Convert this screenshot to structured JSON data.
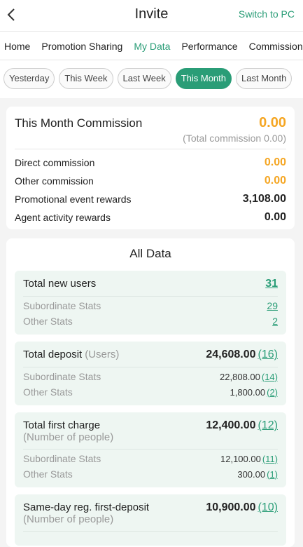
{
  "header": {
    "title": "Invite",
    "action": "Switch to PC"
  },
  "tabs": [
    {
      "label": "Home",
      "active": false
    },
    {
      "label": "Promotion Sharing",
      "active": false
    },
    {
      "label": "My Data",
      "active": true
    },
    {
      "label": "Performance",
      "active": false
    },
    {
      "label": "Commission",
      "active": false
    }
  ],
  "filters": [
    {
      "label": "Yesterday",
      "active": false
    },
    {
      "label": "This Week",
      "active": false
    },
    {
      "label": "Last Week",
      "active": false
    },
    {
      "label": "This Month",
      "active": true
    },
    {
      "label": "Last Month",
      "active": false
    }
  ],
  "summary": {
    "title": "This Month Commission",
    "total": "0.00",
    "note": "(Total commission 0.00)",
    "rows": [
      {
        "label": "Direct commission",
        "value": "0.00",
        "highlight": true
      },
      {
        "label": "Other commission",
        "value": "0.00",
        "highlight": true
      },
      {
        "label": "Promotional event rewards",
        "value": "3,108.00",
        "highlight": false
      },
      {
        "label": "Agent activity rewards",
        "value": "0.00",
        "highlight": false
      }
    ]
  },
  "all_data": {
    "title": "All Data",
    "groups": [
      {
        "label": "Total new users",
        "total": "31",
        "rows": [
          {
            "label": "Subordinate Stats",
            "value": "29"
          },
          {
            "label": "Other Stats",
            "value": "2"
          }
        ]
      },
      {
        "label": "Total deposit",
        "sublabel": "(Users)",
        "sublabel_inline": true,
        "total": "24,608.00",
        "count": "(16)",
        "rows": [
          {
            "label": "Subordinate Stats",
            "value": "22,808.00",
            "count": "(14)"
          },
          {
            "label": "Other Stats",
            "value": "1,800.00",
            "count": "(2)"
          }
        ]
      },
      {
        "label": "Total first charge",
        "sublabel": "(Number of people)",
        "sublabel_inline": false,
        "total": "12,400.00",
        "count": "(12)",
        "rows": [
          {
            "label": "Subordinate Stats",
            "value": "12,100.00",
            "count": "(11)"
          },
          {
            "label": "Other Stats",
            "value": "300.00",
            "count": "(1)"
          }
        ]
      },
      {
        "label": "Same-day reg. first-deposit",
        "sublabel": "(Number of people)",
        "sublabel_inline": false,
        "total": "10,900.00",
        "count": "(10)",
        "rows": []
      }
    ]
  }
}
